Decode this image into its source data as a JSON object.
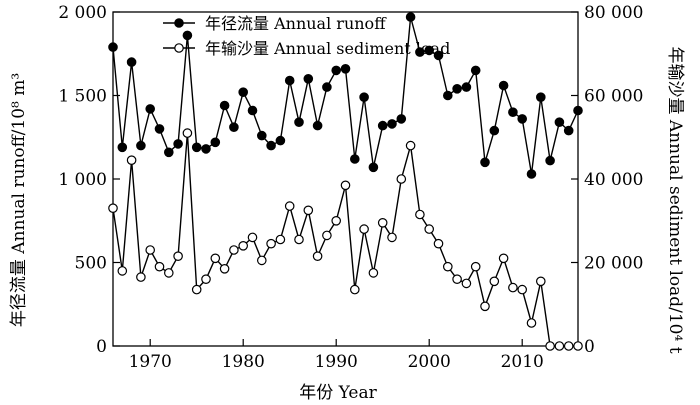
{
  "chart_data": {
    "type": "line",
    "xlabel": "年份 Year",
    "ylabel_left": "年径流量 Annual runoff/10⁸ m³",
    "ylabel_right": "年输沙量 Annual sediment load/10⁴ t",
    "xlim": [
      1966,
      2016
    ],
    "ylim_left": [
      0,
      2000
    ],
    "ylim_right": [
      0,
      80000
    ],
    "x_ticks": [
      1970,
      1980,
      1990,
      2000,
      2010
    ],
    "x_tick_labels": [
      "1970",
      "1980",
      "1990",
      "2000",
      "2010"
    ],
    "y_left_ticks": [
      0,
      500,
      1000,
      1500,
      2000
    ],
    "y_left_tick_labels": [
      "0",
      "500",
      "1 000",
      "1 500",
      "2 000"
    ],
    "y_right_ticks": [
      0,
      20000,
      40000,
      60000,
      80000
    ],
    "y_right_tick_labels": [
      "0",
      "20 000",
      "40 000",
      "60 000",
      "80 000"
    ],
    "grid": false,
    "legend": "top-center",
    "x": [
      1966,
      1967,
      1968,
      1969,
      1970,
      1971,
      1972,
      1973,
      1974,
      1975,
      1976,
      1977,
      1978,
      1979,
      1980,
      1981,
      1982,
      1983,
      1984,
      1985,
      1986,
      1987,
      1988,
      1989,
      1990,
      1991,
      1992,
      1993,
      1994,
      1995,
      1996,
      1997,
      1998,
      1999,
      2000,
      2001,
      2002,
      2003,
      2004,
      2005,
      2006,
      2007,
      2008,
      2009,
      2010,
      2011,
      2012,
      2013,
      2014,
      2015,
      2016
    ],
    "series": [
      {
        "name": "年径流量 Annual runoff",
        "axis": "left",
        "marker": "filled",
        "values": [
          1790,
          1190,
          1700,
          1200,
          1420,
          1300,
          1160,
          1210,
          1860,
          1190,
          1180,
          1220,
          1440,
          1310,
          1520,
          1410,
          1260,
          1200,
          1230,
          1590,
          1340,
          1600,
          1320,
          1550,
          1650,
          1660,
          1120,
          1490,
          1070,
          1320,
          1330,
          1360,
          1970,
          1760,
          1770,
          1740,
          1500,
          1540,
          1550,
          1650,
          1100,
          1290,
          1560,
          1400,
          1360,
          1030,
          1490,
          1110,
          1340,
          1290,
          1410
        ]
      },
      {
        "name": "年输沙量 Annual sediment load",
        "axis": "right",
        "marker": "open",
        "values": [
          33000,
          18000,
          44500,
          16500,
          23000,
          19000,
          17500,
          21500,
          51000,
          13500,
          16000,
          21000,
          18500,
          23000,
          24000,
          26000,
          20500,
          24500,
          25500,
          33500,
          25500,
          32500,
          21500,
          26500,
          30000,
          38500,
          13500,
          28000,
          17500,
          29500,
          26000,
          40000,
          48000,
          31500,
          28000,
          24500,
          19000,
          16000,
          15000,
          19000,
          9500,
          15500,
          21000,
          14000,
          13500,
          5500,
          15500,
          0,
          0,
          0,
          0
        ]
      }
    ]
  }
}
